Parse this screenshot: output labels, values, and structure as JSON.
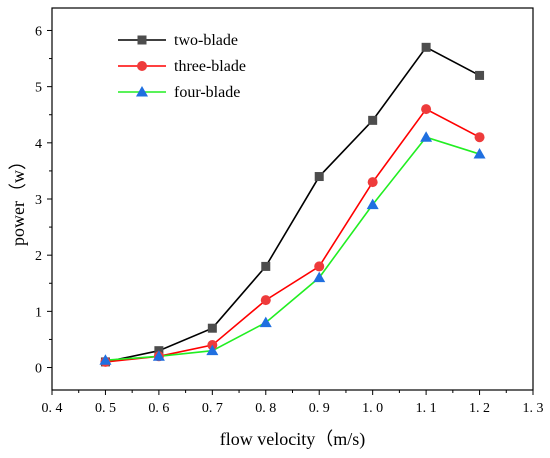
{
  "chart_data": {
    "type": "line",
    "title": "",
    "xlabel": "flow velocity（m/s)",
    "ylabel": "power（w）",
    "xlim": [
      0.4,
      1.3
    ],
    "ylim": [
      -0.4,
      6.4
    ],
    "xticks": [
      0.4,
      0.5,
      0.6,
      0.7,
      0.8,
      0.9,
      1.0,
      1.1,
      1.2,
      1.3
    ],
    "xtick_labels": [
      "0. 4",
      "0. 5",
      "0. 6",
      "0. 7",
      "0. 8",
      "0. 9",
      "1. 0",
      "1. 1",
      "1. 2",
      "1. 3"
    ],
    "yticks": [
      0,
      1,
      2,
      3,
      4,
      5,
      6
    ],
    "ytick_labels": [
      "0",
      "1",
      "2",
      "3",
      "4",
      "5",
      "6"
    ],
    "grid": false,
    "legend_position": "top-left",
    "x": [
      0.5,
      0.6,
      0.7,
      0.8,
      0.9,
      1.0,
      1.1,
      1.2
    ],
    "series": [
      {
        "name": "two-blade",
        "color": "#000000",
        "marker_color": "#4d4d4d",
        "marker": "square",
        "values": [
          0.1,
          0.3,
          0.7,
          1.8,
          3.4,
          4.4,
          5.7,
          5.2
        ]
      },
      {
        "name": "three-blade",
        "color": "#ff0000",
        "marker_color": "#ee3b3b",
        "marker": "circle",
        "values": [
          0.1,
          0.2,
          0.4,
          1.2,
          1.8,
          3.3,
          4.6,
          4.1
        ]
      },
      {
        "name": "four-blade",
        "color": "#22ee22",
        "marker_color": "#1f6fe0",
        "marker": "triangle",
        "values": [
          0.13,
          0.2,
          0.3,
          0.8,
          1.6,
          2.9,
          4.1,
          3.8
        ]
      }
    ]
  }
}
